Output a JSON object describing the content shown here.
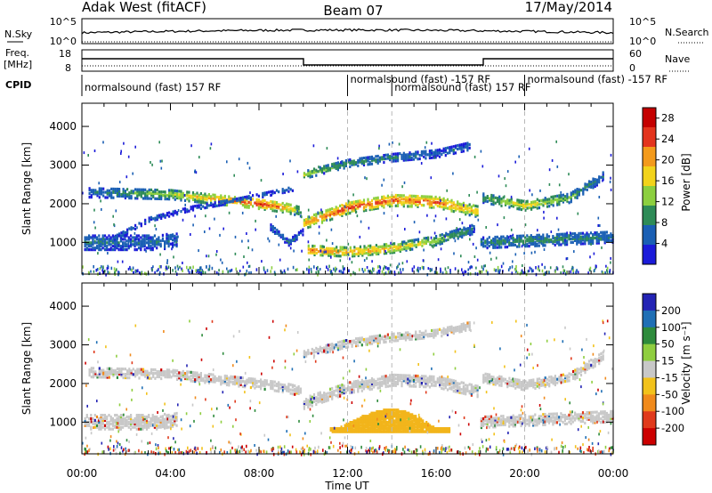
{
  "header": {
    "station": "Adak West (fitACF)",
    "beam": "Beam 07",
    "date": "17/May/2014"
  },
  "noise_panel": {
    "left_label": "N.Sky",
    "right_label": "N.Search",
    "left_ticks": [
      "10^5",
      "10^0"
    ],
    "right_ticks": [
      "10^5",
      "10^0"
    ]
  },
  "freq_panel": {
    "left_label_1": "Freq.",
    "left_label_2": "[MHz]",
    "right_label": "Nave",
    "left_ticks": [
      "18",
      "8"
    ],
    "right_ticks": [
      "60",
      "0"
    ]
  },
  "cpid_panel": {
    "label": "CPID",
    "entries": [
      {
        "text": "normalsound (fast) 157 RF",
        "start_hour": 0
      },
      {
        "text": "normalsound (fast) -157 RF",
        "start_hour": 12
      },
      {
        "text": "normalsound (fast) 157 RF",
        "start_hour": 14
      },
      {
        "text": "normalsound (fast) -157 RF",
        "start_hour": 20
      }
    ],
    "change_hours": [
      12,
      14,
      20
    ]
  },
  "chart_data": [
    {
      "type": "heatmap",
      "panel": "power",
      "xlabel": "",
      "ylabel": "Slant Range [km]",
      "xlim": [
        0,
        24
      ],
      "ylim": [
        180,
        4600
      ],
      "y_ticks": [
        "1000",
        "2000",
        "3000",
        "4000"
      ],
      "colorbar_label": "Power [dB]",
      "colorbar_ticks": [
        "4",
        "8",
        "12",
        "16",
        "20",
        "24",
        "28"
      ],
      "colorbar_range": [
        0,
        30
      ],
      "colorscale": [
        "#1b1bd9",
        "#1a5fb4",
        "#2e8b57",
        "#8ccf3f",
        "#f2d31b",
        "#f39a1b",
        "#e3341d",
        "#c40000"
      ],
      "bands": [
        {
          "x": [
            0.3,
            4,
            8,
            9.2,
            9.9
          ],
          "y": [
            2300,
            2250,
            2000,
            1900,
            1800
          ],
          "width": 260,
          "values": [
            6,
            14,
            26,
            20,
            12
          ]
        },
        {
          "x": [
            1.2,
            3,
            5,
            7,
            9.5
          ],
          "y": [
            1050,
            1600,
            1900,
            2100,
            2400
          ],
          "width": 120,
          "values": [
            6,
            6,
            5,
            6,
            5
          ]
        },
        {
          "x": [
            0.1,
            2,
            3.5,
            4.3
          ],
          "y": [
            1000,
            1000,
            1000,
            1100
          ],
          "width": 380,
          "values": [
            8,
            6,
            7,
            5
          ]
        },
        {
          "x": [
            8.5,
            9.3,
            10
          ],
          "y": [
            1400,
            1000,
            1300
          ],
          "width": 160,
          "values": [
            6,
            7,
            5
          ]
        },
        {
          "x": [
            10,
            12,
            14,
            16,
            17.9
          ],
          "y": [
            1500,
            1900,
            2100,
            2050,
            1800
          ],
          "width": 300,
          "values": [
            20,
            26,
            24,
            24,
            18
          ]
        },
        {
          "x": [
            10.2,
            12,
            14,
            16,
            17.7
          ],
          "y": [
            800,
            750,
            850,
            1050,
            1350
          ],
          "width": 230,
          "values": [
            24,
            22,
            20,
            14,
            8
          ]
        },
        {
          "x": [
            10,
            12,
            14,
            16,
            17.5
          ],
          "y": [
            2750,
            3050,
            3200,
            3300,
            3500
          ],
          "width": 200,
          "values": [
            14,
            10,
            8,
            6,
            6
          ]
        },
        {
          "x": [
            18.1,
            20,
            22,
            23.5
          ],
          "y": [
            2150,
            1950,
            2150,
            2700
          ],
          "width": 240,
          "values": [
            10,
            18,
            12,
            7
          ]
        },
        {
          "x": [
            18,
            20,
            22,
            24
          ],
          "y": [
            1000,
            1050,
            1100,
            1150
          ],
          "width": 300,
          "values": [
            8,
            10,
            9,
            7
          ]
        }
      ]
    },
    {
      "type": "heatmap",
      "panel": "velocity",
      "xlabel": "Time UT",
      "ylabel": "Slant Range [km]",
      "xlim": [
        0,
        24
      ],
      "ylim": [
        180,
        4600
      ],
      "x_ticks": [
        "00:00",
        "04:00",
        "08:00",
        "12:00",
        "16:00",
        "20:00",
        "00:00"
      ],
      "y_ticks": [
        "1000",
        "2000",
        "3000",
        "4000"
      ],
      "colorbar_label": "Velocity [m s⁻¹]",
      "colorbar_ticks": [
        "200",
        "100",
        "50",
        "15",
        "-15",
        "-50",
        "-100",
        "-200"
      ],
      "colorscale": [
        "#2323b4",
        "#1f6fb5",
        "#2e8b3c",
        "#8fce3f",
        "#c8c8c8",
        "#f2c21b",
        "#f08a1c",
        "#e03a1c",
        "#cc0000"
      ],
      "bands": [
        {
          "x": [
            0.3,
            4,
            8,
            9.2,
            9.9
          ],
          "y": [
            2300,
            2250,
            2000,
            1900,
            1800
          ],
          "width": 260,
          "values": [
            0,
            0,
            0,
            0,
            0
          ]
        },
        {
          "x": [
            0.1,
            2,
            3.5,
            4.3
          ],
          "y": [
            1000,
            1000,
            1000,
            1100
          ],
          "width": 360,
          "values": [
            0,
            0,
            0,
            0
          ]
        },
        {
          "x": [
            10,
            12,
            14,
            16,
            17.9
          ],
          "y": [
            1500,
            1900,
            2100,
            2050,
            1800
          ],
          "width": 300,
          "values": [
            0,
            0,
            0,
            0,
            0
          ]
        },
        {
          "x": [
            10,
            12,
            14,
            16,
            17.5
          ],
          "y": [
            2750,
            3050,
            3200,
            3300,
            3500
          ],
          "width": 200,
          "values": [
            0,
            0,
            0,
            0,
            0
          ]
        },
        {
          "x": [
            18.1,
            20,
            22,
            23.5
          ],
          "y": [
            2150,
            1950,
            2150,
            2700
          ],
          "width": 240,
          "values": [
            0,
            0,
            0,
            0
          ]
        },
        {
          "x": [
            18,
            20,
            22,
            24
          ],
          "y": [
            1000,
            1050,
            1100,
            1150
          ],
          "width": 280,
          "values": [
            0,
            0,
            0,
            0
          ]
        }
      ],
      "regions": [
        {
          "shape": "blob",
          "x": [
            11.2,
            16.6
          ],
          "y": [
            750,
            1500
          ],
          "value": -45
        }
      ]
    }
  ]
}
